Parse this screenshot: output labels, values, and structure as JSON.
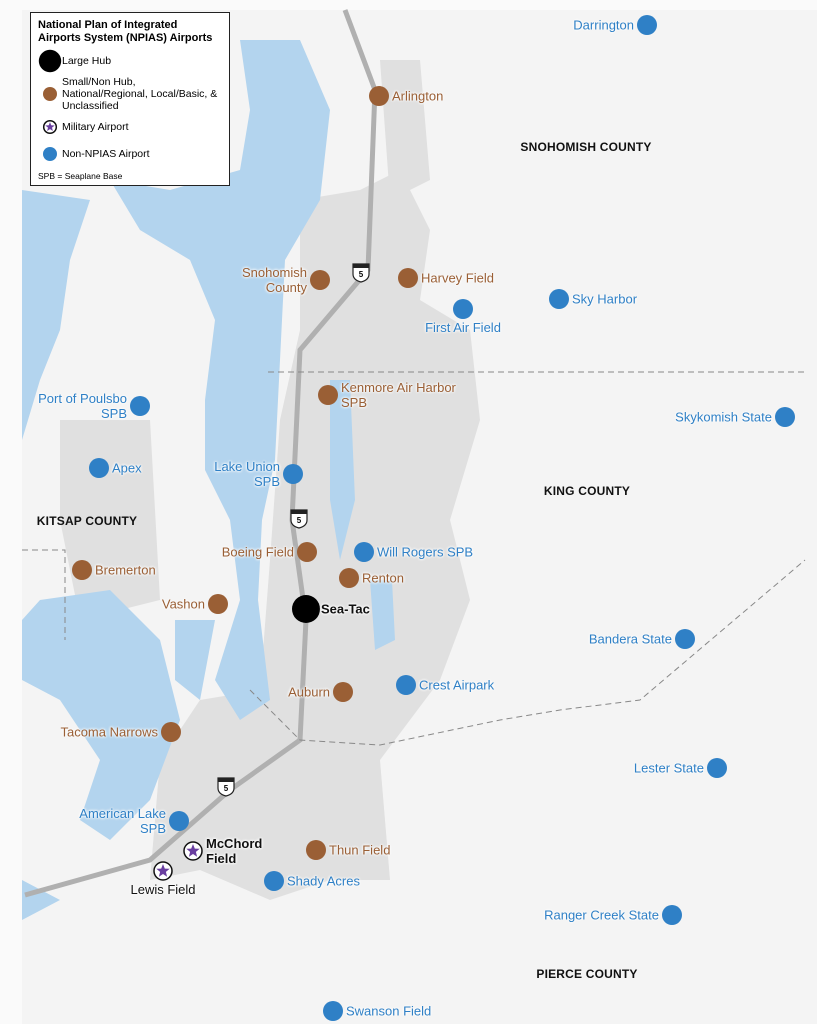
{
  "legend": {
    "title": "National Plan of Integrated Airports System (NPIAS) Airports",
    "items": [
      {
        "label": "Large Hub",
        "kind": "large",
        "color": "#000000"
      },
      {
        "label": "Small/Non Hub, National/Regional, Local/Basic, & Unclassified",
        "kind": "small",
        "color": "#9a5f35"
      },
      {
        "label": "Military Airport",
        "kind": "military",
        "color": "#6a3fa0"
      },
      {
        "label": "Non-NPIAS Airport",
        "kind": "non",
        "color": "#2f80c6"
      }
    ],
    "note": "SPB = Seaplane Base"
  },
  "counties": [
    "SNOHOMISH COUNTY",
    "KING COUNTY",
    "KITSAP COUNTY",
    "PIERCE COUNTY"
  ],
  "highway_shields": [
    "5",
    "5",
    "5"
  ],
  "airports": [
    {
      "name": "Sea-Tac",
      "kind": "large"
    },
    {
      "name": "Arlington",
      "kind": "small"
    },
    {
      "name": "Snohomish County",
      "kind": "small"
    },
    {
      "name": "Harvey Field",
      "kind": "small"
    },
    {
      "name": "Kenmore Air Harbor SPB",
      "kind": "small"
    },
    {
      "name": "Boeing Field",
      "kind": "small"
    },
    {
      "name": "Renton",
      "kind": "small"
    },
    {
      "name": "Vashon",
      "kind": "small"
    },
    {
      "name": "Bremerton",
      "kind": "small"
    },
    {
      "name": "Auburn",
      "kind": "small"
    },
    {
      "name": "Tacoma Narrows",
      "kind": "small"
    },
    {
      "name": "Thun Field",
      "kind": "small"
    },
    {
      "name": "McChord Field",
      "kind": "military"
    },
    {
      "name": "Lewis Field",
      "kind": "military"
    },
    {
      "name": "Darrington",
      "kind": "non"
    },
    {
      "name": "Sky Harbor",
      "kind": "non"
    },
    {
      "name": "First Air Field",
      "kind": "non"
    },
    {
      "name": "Port of Poulsbo SPB",
      "kind": "non"
    },
    {
      "name": "Skykomish State",
      "kind": "non"
    },
    {
      "name": "Apex",
      "kind": "non"
    },
    {
      "name": "Lake Union SPB",
      "kind": "non"
    },
    {
      "name": "Will Rogers SPB",
      "kind": "non"
    },
    {
      "name": "Bandera State",
      "kind": "non"
    },
    {
      "name": "Crest Airpark",
      "kind": "non"
    },
    {
      "name": "Lester State",
      "kind": "non"
    },
    {
      "name": "American Lake SPB",
      "kind": "non"
    },
    {
      "name": "Shady Acres",
      "kind": "non"
    },
    {
      "name": "Ranger Creek State",
      "kind": "non"
    },
    {
      "name": "Swanson Field",
      "kind": "non"
    }
  ]
}
